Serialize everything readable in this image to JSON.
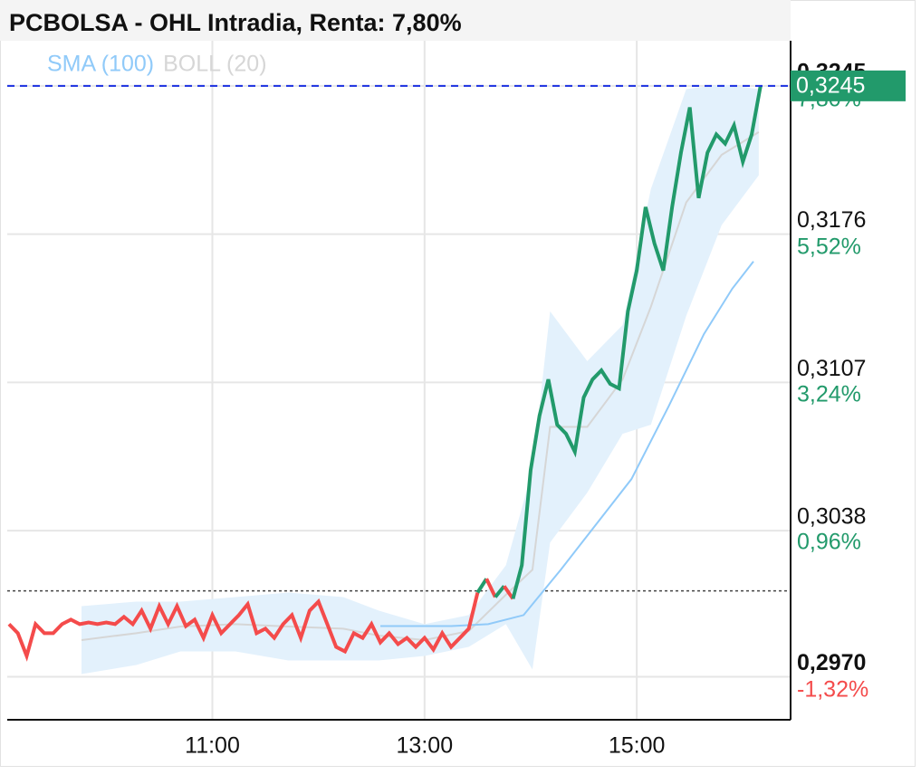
{
  "chart_data": {
    "type": "line",
    "title": "PCBOLSA - OHL Intradia, Renta: 7,80%",
    "x": [
      545,
      550,
      555,
      560,
      565,
      570,
      575,
      580,
      585,
      590,
      595,
      600,
      605,
      610,
      615,
      620,
      625,
      630,
      635,
      640,
      645,
      650,
      655,
      660,
      665,
      670,
      675,
      680,
      685,
      690,
      695,
      700,
      705,
      710,
      715,
      720,
      725,
      730,
      735,
      740,
      745,
      750,
      755,
      760,
      765,
      770,
      775,
      780,
      785,
      790,
      795,
      800,
      805,
      810,
      815,
      820,
      825,
      830,
      835,
      840,
      845,
      850,
      855,
      860,
      865,
      870,
      875,
      880,
      885,
      890,
      895,
      900,
      905,
      910,
      915,
      920,
      925,
      930,
      935,
      940,
      945,
      950,
      955,
      960,
      965,
      970
    ],
    "values": [
      0.29945,
      0.29903,
      0.29797,
      0.29945,
      0.29903,
      0.29903,
      0.29945,
      0.29966,
      0.29945,
      0.29953,
      0.29945,
      0.29953,
      0.29945,
      0.29979,
      0.29945,
      0.30008,
      0.29924,
      0.30029,
      0.29945,
      0.30029,
      0.29936,
      0.29966,
      0.29881,
      0.29987,
      0.29903,
      0.29945,
      0.29987,
      0.30038,
      0.29903,
      0.29924,
      0.29881,
      0.29945,
      0.29987,
      0.29881,
      0.30008,
      0.3005,
      0.29945,
      0.29839,
      0.29818,
      0.29903,
      0.29881,
      0.29945,
      0.2986,
      0.29903,
      0.29852,
      0.29881,
      0.29839,
      0.29881,
      0.29827,
      0.29903,
      0.29839,
      0.29881,
      0.29924,
      0.30092,
      0.30156,
      0.30071,
      0.30122,
      0.30063,
      0.30219,
      0.30662,
      0.30915,
      0.31084,
      0.30873,
      0.30831,
      0.30747,
      0.31,
      0.31084,
      0.31126,
      0.31063,
      0.31042,
      0.31401,
      0.31591,
      0.31886,
      0.31717,
      0.31591,
      0.31886,
      0.32139,
      0.3235,
      0.31928,
      0.32139,
      0.32224,
      0.32181,
      0.32266,
      0.32097,
      0.32224,
      0.3245
    ],
    "color_up": "#229a6b",
    "color_down": "#f44b4b",
    "reference_price": 0.301,
    "last_price": {
      "value": 0.3245,
      "label": "0,3245"
    },
    "series": [
      {
        "name": "SMA (100)",
        "color": "#90caf9",
        "x": [
          755,
          795,
          816,
          836,
          857,
          877,
          897,
          918,
          938,
          954,
          966
        ],
        "values": [
          0.29936,
          0.29936,
          0.29945,
          0.29987,
          0.30198,
          0.30409,
          0.3062,
          0.30958,
          0.31295,
          0.31506,
          0.31633
        ]
      },
      {
        "name": "BOLL (20)",
        "color": "#d6d6d6",
        "band_color": "#e3f1fc",
        "x": [
          586,
          617,
          642,
          673,
          703,
          734,
          754,
          780,
          805,
          826,
          841,
          851,
          872,
          892,
          908,
          928,
          948,
          969
        ],
        "upper": [
          0.30029,
          0.3005,
          0.3005,
          0.30071,
          0.30092,
          0.30071,
          0.30008,
          0.29945,
          0.29987,
          0.30219,
          0.30662,
          0.31401,
          0.31169,
          0.31337,
          0.3197,
          0.32435,
          0.32456,
          0.32435
        ],
        "middle": [
          0.29871,
          0.29903,
          0.29934,
          0.29945,
          0.29934,
          0.29924,
          0.29892,
          0.29871,
          0.29913,
          0.30082,
          0.30198,
          0.30863,
          0.30863,
          0.31084,
          0.31422,
          0.31908,
          0.32129,
          0.32235
        ],
        "lower": [
          0.29713,
          0.29755,
          0.29818,
          0.29818,
          0.29776,
          0.29776,
          0.29776,
          0.29797,
          0.29839,
          0.29945,
          0.29734,
          0.30325,
          0.30557,
          0.30831,
          0.30873,
          0.3138,
          0.31802,
          0.32034
        ]
      }
    ],
    "xlim": [
      544,
      987
    ],
    "xticks": [
      {
        "value": 660,
        "label": "11:00"
      },
      {
        "value": 780,
        "label": "13:00"
      },
      {
        "value": 900,
        "label": "15:00"
      }
    ],
    "ylim": [
      0.295,
      0.3266
    ],
    "yticks": [
      {
        "value": 0.297,
        "label": "0,2970"
      },
      {
        "value": 0.3038,
        "label": "0,3038"
      },
      {
        "value": 0.3107,
        "label": "0,3107"
      },
      {
        "value": 0.3176,
        "label": "0,3176"
      },
      {
        "value": 0.3245,
        "label": "0,3245"
      }
    ],
    "y2lim": [
      -1.99,
      8.5
    ],
    "y2ticks": [
      {
        "value": -1.32,
        "label": "-1,32%"
      },
      {
        "value": 0.96,
        "label": "0,96%"
      },
      {
        "value": 3.24,
        "label": "3,24%"
      },
      {
        "value": 5.52,
        "label": "5,52%"
      },
      {
        "value": 7.8,
        "label": "7,80%"
      }
    ],
    "grid": true
  }
}
